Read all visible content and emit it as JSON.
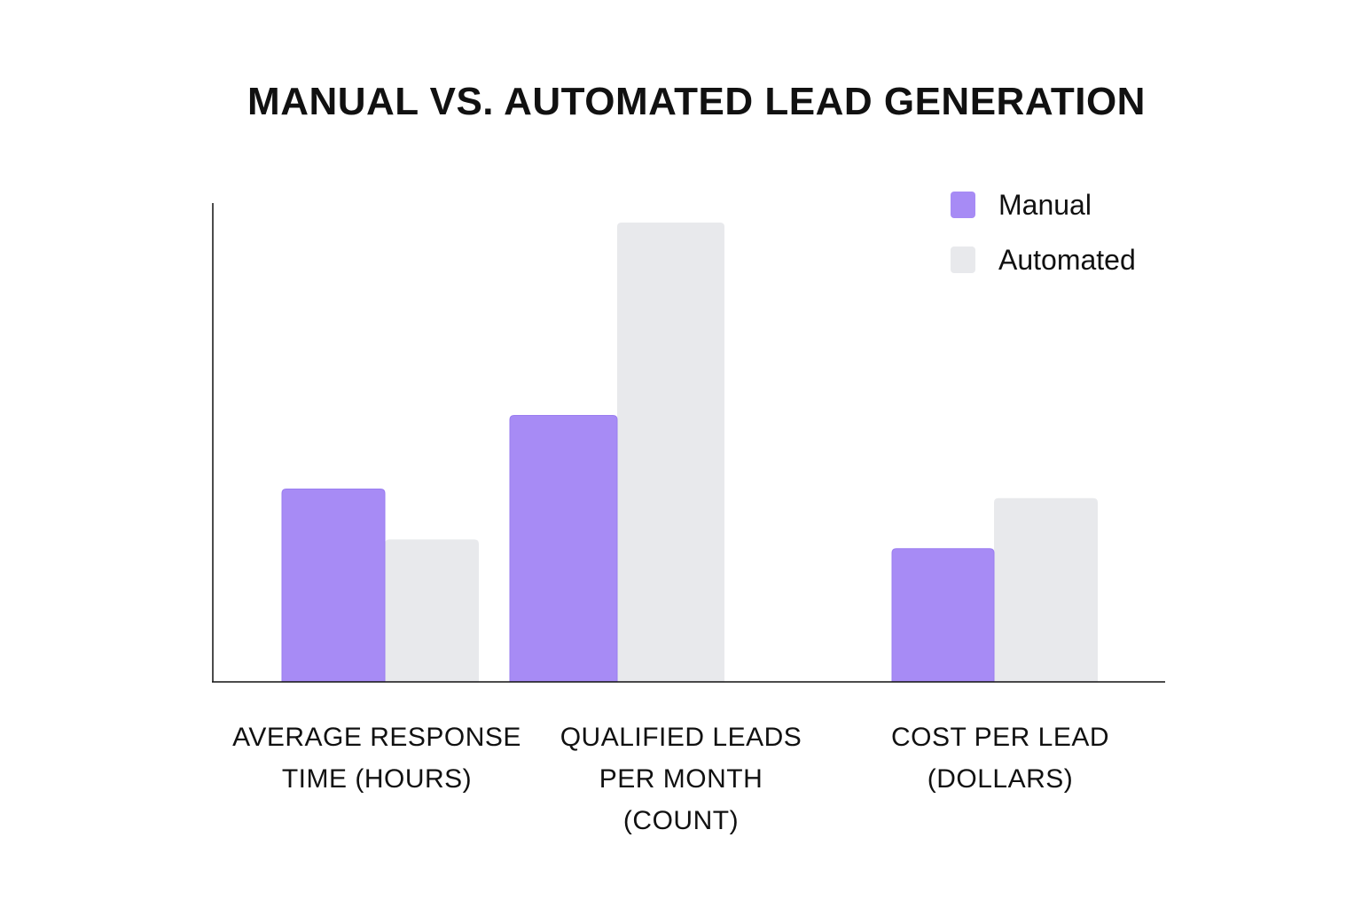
{
  "chart_data": {
    "type": "bar",
    "title": "MANUAL VS. AUTOMATED LEAD GENERATION",
    "categories": [
      "AVERAGE RESPONSE TIME (HOURS)",
      "QUALIFIED LEADS PER MONTH (COUNT)",
      "COST PER LEAD (DOLLARS)"
    ],
    "category_lines": [
      [
        "AVERAGE RESPONSE",
        "TIME (HOURS)"
      ],
      [
        "QUALIFIED LEADS",
        "PER MONTH",
        "(COUNT)"
      ],
      [
        "COST PER LEAD",
        "(DOLLARS)"
      ]
    ],
    "series": [
      {
        "name": "Manual",
        "color": "#a78bf5",
        "values": [
          42,
          58,
          29
        ]
      },
      {
        "name": "Automated",
        "color": "#e8e9ec",
        "values": [
          31,
          100,
          40
        ]
      }
    ],
    "ylim": [
      0,
      100
    ],
    "grid": false,
    "legend_position": "top-right",
    "axis_color": "#111111"
  }
}
